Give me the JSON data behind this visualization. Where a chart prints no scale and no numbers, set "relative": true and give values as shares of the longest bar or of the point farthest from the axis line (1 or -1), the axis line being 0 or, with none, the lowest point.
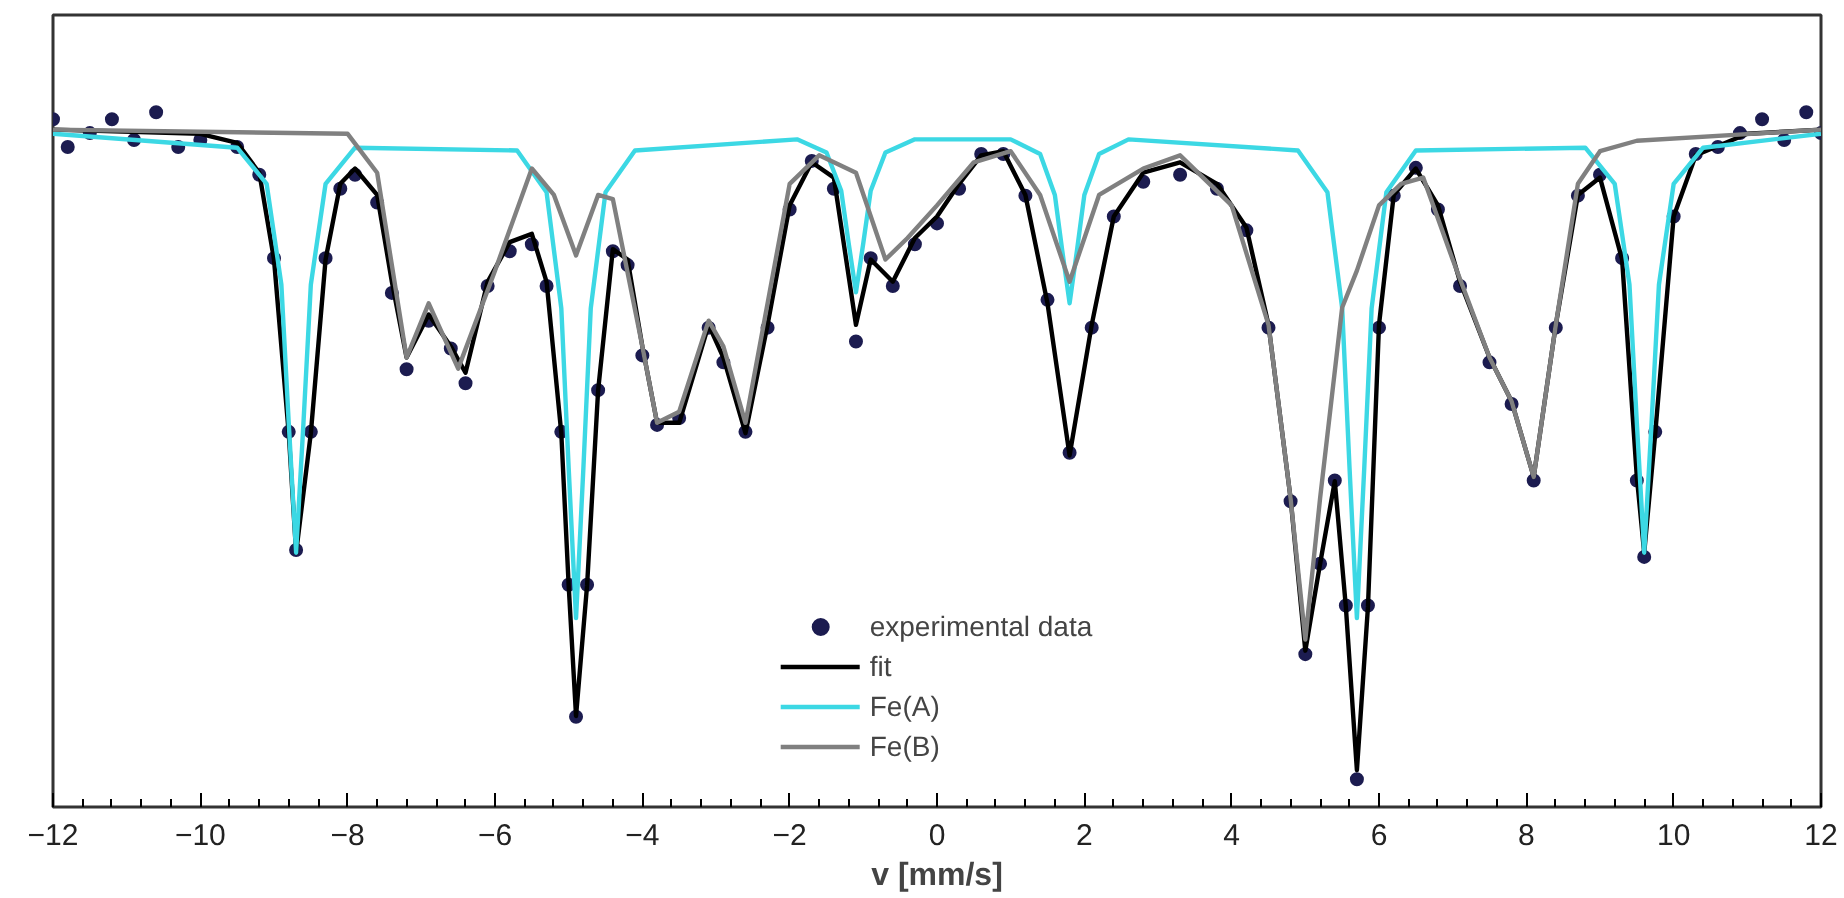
{
  "chart_data": {
    "type": "line",
    "xlabel": "v [mm/s]",
    "relative": true,
    "xlim": [
      -12,
      12
    ],
    "xticks": [
      -12,
      -10,
      -8,
      -6,
      -4,
      -2,
      0,
      2,
      4,
      6,
      8,
      10,
      12
    ],
    "grid": false,
    "legend": "bottom",
    "tick_labels": "x",
    "series": [
      {
        "name": "experimental data",
        "type": "scatter",
        "marker": "circle",
        "color": "#1c1c50",
        "x": [
          -12,
          -11.8,
          -11.5,
          -11.2,
          -10.9,
          -10.6,
          -10.3,
          -10,
          -9.5,
          -9.2,
          -9.0,
          -8.8,
          -8.7,
          -8.5,
          -8.3,
          -8.1,
          -7.9,
          -7.6,
          -7.4,
          -7.2,
          -6.9,
          -6.6,
          -6.4,
          -6.1,
          -5.8,
          -5.5,
          -5.3,
          -5.1,
          -5.0,
          -4.9,
          -4.75,
          -4.6,
          -4.4,
          -4.2,
          -4.0,
          -3.8,
          -3.5,
          -3.1,
          -2.9,
          -2.6,
          -2.3,
          -2.0,
          -1.7,
          -1.4,
          -1.1,
          -0.9,
          -0.6,
          -0.3,
          0,
          0.3,
          0.6,
          0.9,
          1.2,
          1.5,
          1.8,
          2.1,
          2.4,
          2.8,
          3.3,
          3.8,
          4.2,
          4.5,
          4.8,
          5.0,
          5.2,
          5.4,
          5.55,
          5.7,
          5.85,
          6.0,
          6.2,
          6.5,
          6.8,
          7.1,
          7.5,
          7.8,
          8.1,
          8.4,
          8.7,
          9.0,
          9.3,
          9.5,
          9.6,
          9.75,
          10.0,
          10.3,
          10.6,
          10.9,
          11.2,
          11.5,
          11.8,
          12
        ],
        "values": [
          0.99,
          0.95,
          0.97,
          0.99,
          0.96,
          1.0,
          0.95,
          0.96,
          0.95,
          0.91,
          0.79,
          0.54,
          0.37,
          0.54,
          0.79,
          0.89,
          0.91,
          0.87,
          0.74,
          0.63,
          0.7,
          0.66,
          0.61,
          0.75,
          0.8,
          0.81,
          0.75,
          0.54,
          0.32,
          0.13,
          0.32,
          0.6,
          0.8,
          0.78,
          0.65,
          0.55,
          0.56,
          0.69,
          0.64,
          0.54,
          0.69,
          0.86,
          0.93,
          0.89,
          0.67,
          0.79,
          0.75,
          0.81,
          0.84,
          0.89,
          0.94,
          0.94,
          0.88,
          0.73,
          0.51,
          0.69,
          0.85,
          0.9,
          0.91,
          0.89,
          0.83,
          0.69,
          0.44,
          0.22,
          0.35,
          0.47,
          0.29,
          0.04,
          0.29,
          0.69,
          0.88,
          0.92,
          0.86,
          0.75,
          0.64,
          0.58,
          0.47,
          0.69,
          0.88,
          0.91,
          0.79,
          0.47,
          0.36,
          0.54,
          0.85,
          0.94,
          0.95,
          0.97,
          0.99,
          0.96,
          1.0,
          0.97
        ]
      },
      {
        "name": "fit",
        "color": "#000000",
        "x": [
          -12,
          -10,
          -9.5,
          -9.2,
          -9.0,
          -8.8,
          -8.7,
          -8.5,
          -8.3,
          -8.1,
          -7.9,
          -7.6,
          -7.4,
          -7.2,
          -6.9,
          -6.6,
          -6.4,
          -6.1,
          -5.8,
          -5.5,
          -5.3,
          -5.1,
          -5.0,
          -4.9,
          -4.75,
          -4.6,
          -4.4,
          -4.2,
          -4.0,
          -3.8,
          -3.5,
          -3.1,
          -2.9,
          -2.6,
          -2.3,
          -2.0,
          -1.7,
          -1.4,
          -1.1,
          -0.9,
          -0.6,
          -0.3,
          0,
          0.3,
          0.6,
          0.9,
          1.2,
          1.5,
          1.8,
          2.1,
          2.4,
          2.8,
          3.3,
          3.8,
          4.2,
          4.5,
          4.8,
          5.0,
          5.2,
          5.4,
          5.55,
          5.7,
          5.85,
          6.0,
          6.2,
          6.5,
          6.8,
          7.1,
          7.5,
          7.8,
          8.1,
          8.4,
          8.7,
          9.0,
          9.3,
          9.5,
          9.6,
          9.75,
          10.0,
          10.3,
          11,
          12
        ],
        "values": [
          0.975,
          0.969,
          0.956,
          0.913,
          0.788,
          0.538,
          0.366,
          0.538,
          0.788,
          0.897,
          0.919,
          0.881,
          0.756,
          0.647,
          0.709,
          0.663,
          0.625,
          0.756,
          0.813,
          0.825,
          0.756,
          0.538,
          0.319,
          0.131,
          0.319,
          0.6,
          0.803,
          0.788,
          0.663,
          0.553,
          0.553,
          0.694,
          0.647,
          0.538,
          0.694,
          0.866,
          0.928,
          0.906,
          0.694,
          0.788,
          0.756,
          0.819,
          0.85,
          0.897,
          0.938,
          0.944,
          0.881,
          0.725,
          0.506,
          0.694,
          0.85,
          0.913,
          0.928,
          0.897,
          0.834,
          0.694,
          0.444,
          0.225,
          0.35,
          0.469,
          0.288,
          0.053,
          0.288,
          0.694,
          0.881,
          0.919,
          0.866,
          0.756,
          0.647,
          0.584,
          0.475,
          0.694,
          0.881,
          0.906,
          0.788,
          0.475,
          0.366,
          0.538,
          0.85,
          0.938,
          0.969,
          0.975
        ]
      },
      {
        "name": "Fe(A)",
        "color": "#3cd8e4",
        "x": [
          -12,
          -9.5,
          -9.1,
          -8.9,
          -8.8,
          -8.7,
          -8.6,
          -8.5,
          -8.3,
          -7.9,
          -5.7,
          -5.3,
          -5.1,
          -5.0,
          -4.9,
          -4.8,
          -4.7,
          -4.5,
          -4.1,
          -1.9,
          -1.5,
          -1.3,
          -1.2,
          -1.1,
          -1.0,
          -0.9,
          -0.7,
          -0.3,
          1.0,
          1.4,
          1.6,
          1.7,
          1.8,
          1.9,
          2.0,
          2.2,
          2.6,
          4.9,
          5.3,
          5.5,
          5.6,
          5.7,
          5.8,
          5.9,
          6.1,
          6.5,
          8.8,
          9.2,
          9.4,
          9.5,
          9.6,
          9.7,
          9.8,
          10.0,
          10.4,
          12
        ],
        "values": [
          0.969,
          0.949,
          0.897,
          0.752,
          0.553,
          0.366,
          0.553,
          0.752,
          0.897,
          0.949,
          0.945,
          0.885,
          0.718,
          0.488,
          0.272,
          0.488,
          0.718,
          0.885,
          0.945,
          0.961,
          0.942,
          0.887,
          0.812,
          0.741,
          0.812,
          0.887,
          0.942,
          0.961,
          0.961,
          0.94,
          0.881,
          0.801,
          0.725,
          0.801,
          0.881,
          0.94,
          0.961,
          0.945,
          0.885,
          0.718,
          0.488,
          0.272,
          0.488,
          0.718,
          0.885,
          0.945,
          0.949,
          0.897,
          0.752,
          0.553,
          0.366,
          0.553,
          0.752,
          0.897,
          0.949,
          0.969
        ]
      },
      {
        "name": "Fe(B)",
        "color": "#808080",
        "x": [
          -12,
          -8,
          -7.6,
          -7.2,
          -6.9,
          -6.5,
          -6.0,
          -5.5,
          -5.2,
          -4.9,
          -4.6,
          -4.4,
          -4.0,
          -3.8,
          -3.5,
          -3.1,
          -2.9,
          -2.6,
          -2.3,
          -2.0,
          -1.6,
          -1.1,
          -0.7,
          -0.4,
          0,
          0.5,
          1.0,
          1.4,
          1.8,
          2.2,
          2.8,
          3.3,
          4.0,
          4.5,
          4.8,
          5.0,
          5.2,
          5.5,
          5.7,
          6.0,
          6.3,
          6.6,
          7.0,
          7.5,
          7.8,
          8.1,
          8.4,
          8.7,
          9.0,
          9.5,
          12
        ],
        "values": [
          0.975,
          0.969,
          0.913,
          0.647,
          0.725,
          0.631,
          0.772,
          0.919,
          0.881,
          0.794,
          0.881,
          0.875,
          0.663,
          0.553,
          0.569,
          0.7,
          0.663,
          0.553,
          0.725,
          0.897,
          0.938,
          0.913,
          0.788,
          0.819,
          0.866,
          0.928,
          0.944,
          0.881,
          0.756,
          0.881,
          0.919,
          0.938,
          0.866,
          0.694,
          0.444,
          0.241,
          0.444,
          0.719,
          0.772,
          0.866,
          0.897,
          0.906,
          0.788,
          0.647,
          0.584,
          0.475,
          0.694,
          0.897,
          0.944,
          0.959,
          0.975
        ]
      }
    ]
  }
}
